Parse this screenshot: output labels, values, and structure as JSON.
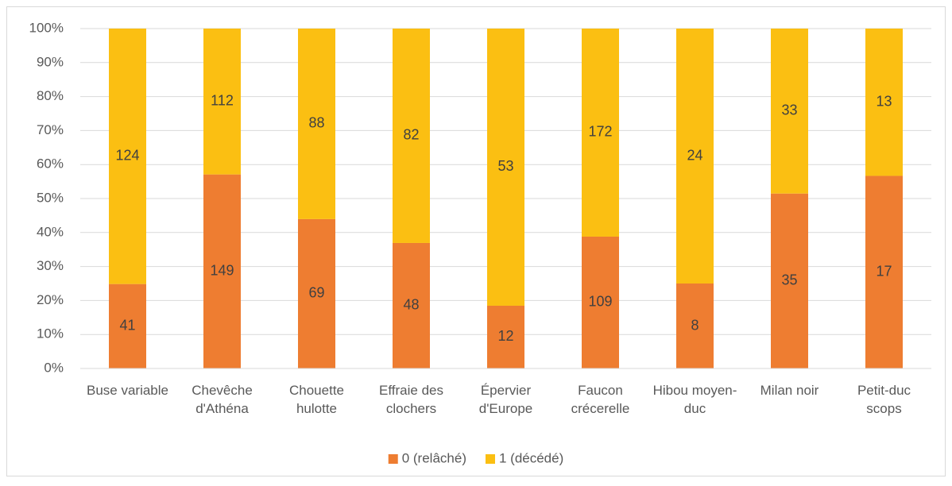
{
  "chart_data": {
    "type": "bar",
    "stacking": "percent",
    "categories": [
      "Buse variable",
      "Chevêche d'Athéna",
      "Chouette hulotte",
      "Effraie des clochers",
      "Épervier d'Europe",
      "Faucon crécerelle",
      "Hibou moyen-duc",
      "Milan noir",
      "Petit-duc scops"
    ],
    "series": [
      {
        "name": "0 (relâché)",
        "color": "#ee7d31",
        "values": [
          41,
          149,
          69,
          48,
          12,
          109,
          8,
          35,
          17
        ]
      },
      {
        "name": "1 (décédé)",
        "color": "#fbbf12",
        "values": [
          124,
          112,
          88,
          82,
          53,
          172,
          24,
          33,
          13
        ]
      }
    ],
    "ylim": [
      0,
      100
    ],
    "yticks": [
      {
        "value": 0,
        "label": "0%"
      },
      {
        "value": 10,
        "label": "10%"
      },
      {
        "value": 20,
        "label": "20%"
      },
      {
        "value": 30,
        "label": "30%"
      },
      {
        "value": 40,
        "label": "40%"
      },
      {
        "value": 50,
        "label": "50%"
      },
      {
        "value": 60,
        "label": "60%"
      },
      {
        "value": 70,
        "label": "70%"
      },
      {
        "value": 80,
        "label": "80%"
      },
      {
        "value": 90,
        "label": "90%"
      },
      {
        "value": 100,
        "label": "100%"
      }
    ],
    "grid": true,
    "legend": "bottom"
  }
}
